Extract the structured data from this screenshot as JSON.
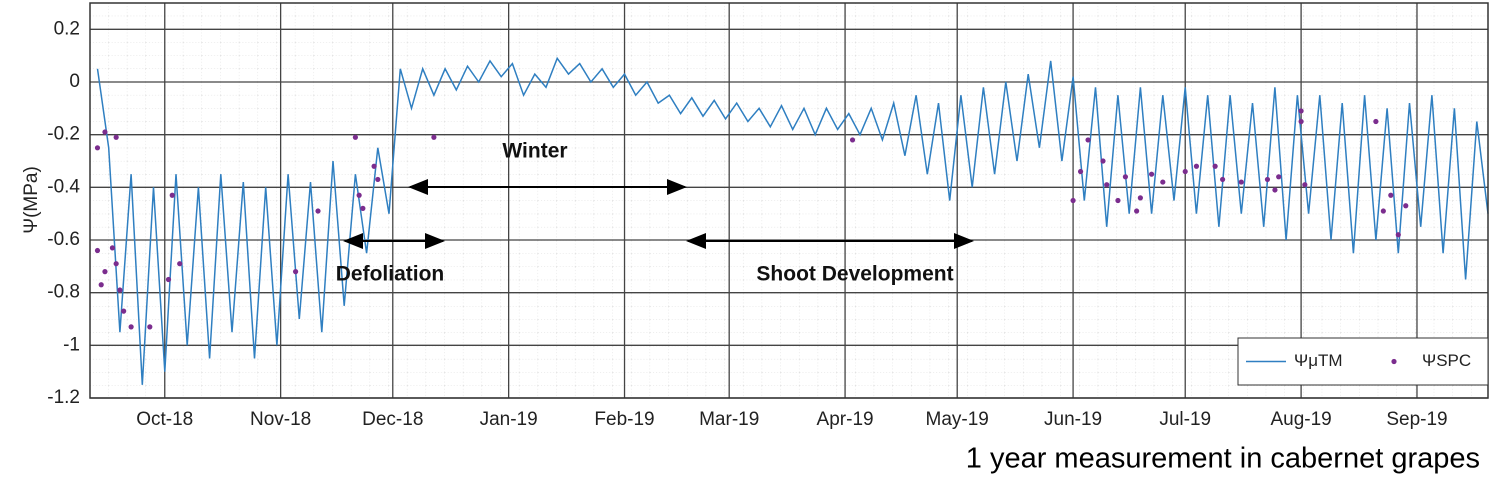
{
  "chart_data": {
    "type": "line",
    "ylabel": "Ψ(MPa)",
    "ylim": [
      -1.2,
      0.3
    ],
    "yticks": [
      0.2,
      0,
      -0.2,
      -0.4,
      -0.6,
      -0.8,
      -1,
      -1.2
    ],
    "xlim": [
      10,
      384
    ],
    "xticks": [
      {
        "value": 30,
        "label": "Oct-18"
      },
      {
        "value": 61,
        "label": "Nov-18"
      },
      {
        "value": 91,
        "label": "Dec-18"
      },
      {
        "value": 122,
        "label": "Jan-19"
      },
      {
        "value": 153,
        "label": "Feb-19"
      },
      {
        "value": 181,
        "label": "Mar-19"
      },
      {
        "value": 212,
        "label": "Apr-19"
      },
      {
        "value": 242,
        "label": "May-19"
      },
      {
        "value": 273,
        "label": "Jun-19"
      },
      {
        "value": 303,
        "label": "Jul-19"
      },
      {
        "value": 334,
        "label": "Aug-19"
      },
      {
        "value": 365,
        "label": "Sep-19"
      }
    ],
    "grid": true,
    "legend": "lower right",
    "annotations": [
      "Winter",
      "Defoliation",
      "Shoot Development"
    ],
    "series": [
      {
        "name": "ΨμTM",
        "color": "#2f7fc1",
        "type": "line",
        "x": [
          12,
          15,
          18,
          21,
          24,
          27,
          30,
          33,
          36,
          39,
          42,
          45,
          48,
          51,
          54,
          57,
          60,
          63,
          66,
          69,
          72,
          75,
          78,
          81,
          84,
          87,
          90,
          93,
          96,
          99,
          102,
          105,
          108,
          111,
          114,
          117,
          120,
          123,
          126,
          129,
          132,
          135,
          138,
          141,
          144,
          147,
          150,
          153,
          156,
          159,
          162,
          165,
          168,
          171,
          174,
          177,
          180,
          183,
          186,
          189,
          192,
          195,
          198,
          201,
          204,
          207,
          210,
          213,
          216,
          219,
          222,
          225,
          228,
          231,
          234,
          237,
          240,
          243,
          246,
          249,
          252,
          255,
          258,
          261,
          264,
          267,
          270,
          273,
          276,
          279,
          282,
          285,
          288,
          291,
          294,
          297,
          300,
          303,
          306,
          309,
          312,
          315,
          318,
          321,
          324,
          327,
          330,
          333,
          336,
          339,
          342,
          345,
          348,
          351,
          354,
          357,
          360,
          363,
          366,
          369,
          372,
          375,
          378,
          381,
          384
        ],
        "values": [
          0.05,
          -0.25,
          -0.95,
          -0.35,
          -1.15,
          -0.4,
          -1.1,
          -0.35,
          -1.0,
          -0.4,
          -1.05,
          -0.35,
          -0.95,
          -0.38,
          -1.05,
          -0.4,
          -1.0,
          -0.35,
          -0.9,
          -0.38,
          -0.95,
          -0.3,
          -0.85,
          -0.35,
          -0.65,
          -0.25,
          -0.5,
          0.05,
          -0.1,
          0.05,
          -0.05,
          0.05,
          -0.03,
          0.06,
          0.0,
          0.08,
          0.02,
          0.07,
          -0.05,
          0.03,
          -0.02,
          0.09,
          0.03,
          0.07,
          0.0,
          0.05,
          -0.02,
          0.03,
          -0.05,
          0.0,
          -0.08,
          -0.05,
          -0.12,
          -0.06,
          -0.13,
          -0.07,
          -0.14,
          -0.08,
          -0.15,
          -0.1,
          -0.17,
          -0.09,
          -0.18,
          -0.1,
          -0.2,
          -0.1,
          -0.18,
          -0.12,
          -0.2,
          -0.1,
          -0.22,
          -0.08,
          -0.28,
          -0.05,
          -0.35,
          -0.08,
          -0.45,
          -0.05,
          -0.4,
          -0.02,
          -0.35,
          0.0,
          -0.3,
          0.03,
          -0.25,
          0.08,
          -0.3,
          0.02,
          -0.45,
          -0.02,
          -0.55,
          -0.05,
          -0.5,
          -0.02,
          -0.5,
          -0.05,
          -0.45,
          -0.02,
          -0.5,
          -0.05,
          -0.55,
          -0.05,
          -0.5,
          -0.08,
          -0.55,
          -0.02,
          -0.6,
          -0.05,
          -0.5,
          -0.05,
          -0.6,
          -0.08,
          -0.65,
          -0.05,
          -0.6,
          -0.1,
          -0.65,
          -0.08,
          -0.55,
          -0.05,
          -0.65,
          -0.1,
          -0.75,
          -0.15,
          -0.5
        ]
      },
      {
        "name": "ΨSPC",
        "color": "#7b2d8e",
        "type": "scatter",
        "x": [
          14,
          12,
          12,
          13,
          14,
          17,
          16,
          18,
          19,
          21,
          26,
          17,
          31,
          32,
          34,
          65,
          71,
          81,
          82,
          83,
          86,
          87,
          102,
          214,
          273,
          275,
          277,
          281,
          282,
          285,
          287,
          290,
          291,
          294,
          297,
          303,
          306,
          311,
          313,
          318,
          325,
          327,
          328,
          334,
          334,
          335,
          354,
          356,
          358,
          360,
          362
        ],
        "values": [
          -0.19,
          -0.25,
          -0.64,
          -0.77,
          -0.72,
          -0.69,
          -0.63,
          -0.79,
          -0.87,
          -0.93,
          -0.93,
          -0.21,
          -0.75,
          -0.43,
          -0.69,
          -0.72,
          -0.49,
          -0.21,
          -0.43,
          -0.48,
          -0.32,
          -0.37,
          -0.21,
          -0.22,
          -0.45,
          -0.34,
          -0.22,
          -0.3,
          -0.39,
          -0.45,
          -0.36,
          -0.49,
          -0.44,
          -0.35,
          -0.38,
          -0.34,
          -0.32,
          -0.32,
          -0.37,
          -0.38,
          -0.37,
          -0.41,
          -0.36,
          -0.11,
          -0.15,
          -0.39,
          -0.15,
          -0.49,
          -0.43,
          -0.58,
          -0.47
        ]
      }
    ]
  },
  "caption": "1 year measurement in cabernet grapes"
}
